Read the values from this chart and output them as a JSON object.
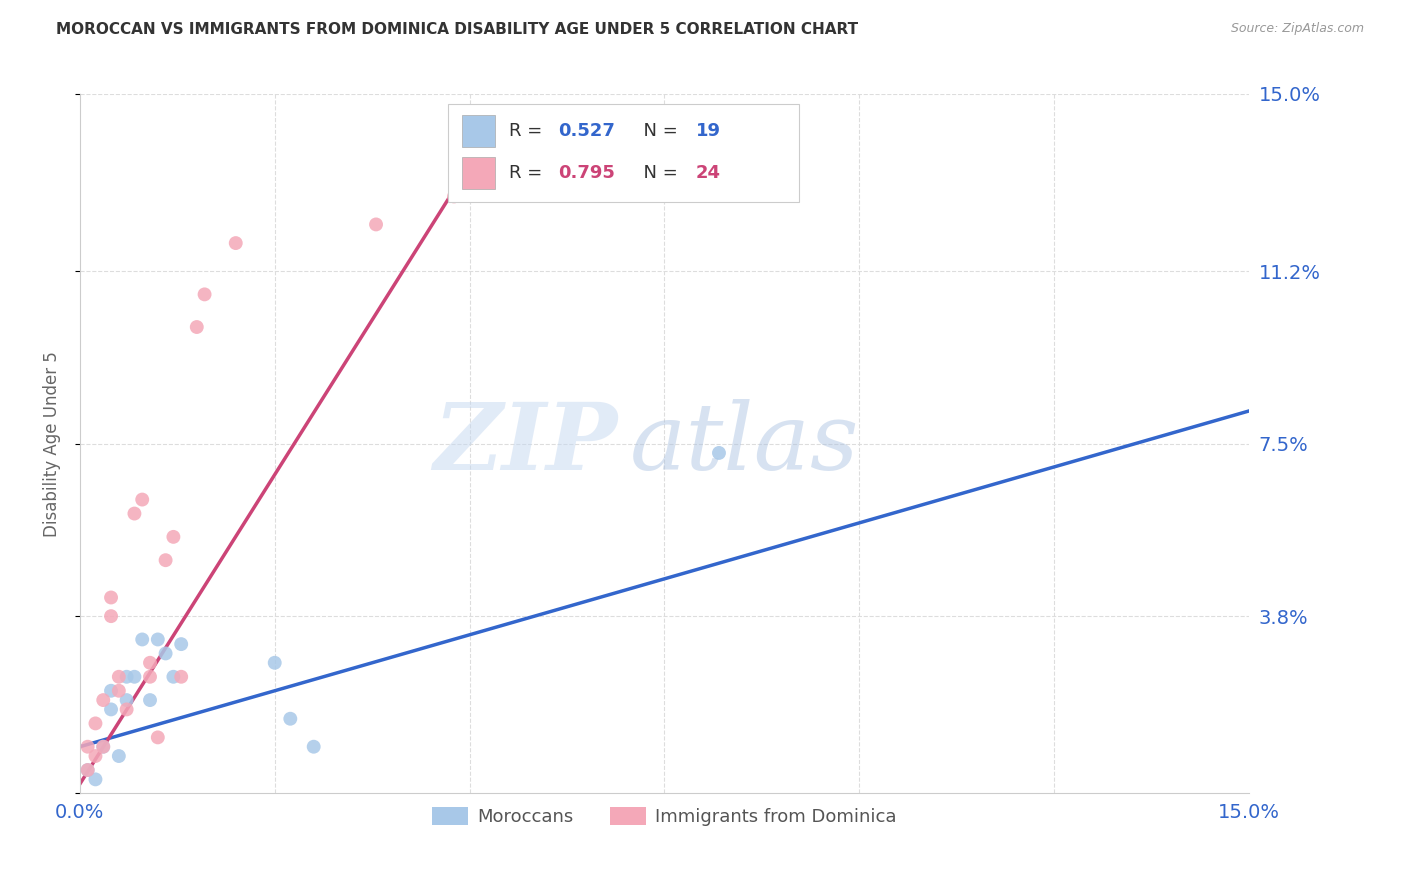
{
  "title": "MOROCCAN VS IMMIGRANTS FROM DOMINICA DISABILITY AGE UNDER 5 CORRELATION CHART",
  "source": "Source: ZipAtlas.com",
  "ylabel": "Disability Age Under 5",
  "ytick_values": [
    0.0,
    0.038,
    0.075,
    0.112,
    0.15
  ],
  "ytick_labels": [
    "",
    "3.8%",
    "7.5%",
    "11.2%",
    "15.0%"
  ],
  "xlim": [
    0.0,
    0.15
  ],
  "ylim": [
    0.0,
    0.15
  ],
  "blue_color": "#a8c8e8",
  "blue_line_color": "#3366cc",
  "pink_color": "#f4a8b8",
  "pink_line_color": "#cc4477",
  "watermark_zip": "ZIP",
  "watermark_atlas": "atlas",
  "blue_dots_x": [
    0.001,
    0.002,
    0.003,
    0.004,
    0.004,
    0.005,
    0.006,
    0.006,
    0.007,
    0.008,
    0.009,
    0.01,
    0.011,
    0.012,
    0.013,
    0.025,
    0.027,
    0.03,
    0.082
  ],
  "blue_dots_y": [
    0.005,
    0.003,
    0.01,
    0.018,
    0.022,
    0.008,
    0.02,
    0.025,
    0.025,
    0.033,
    0.02,
    0.033,
    0.03,
    0.025,
    0.032,
    0.028,
    0.016,
    0.01,
    0.073
  ],
  "pink_dots_x": [
    0.001,
    0.001,
    0.002,
    0.002,
    0.003,
    0.003,
    0.004,
    0.004,
    0.005,
    0.005,
    0.006,
    0.007,
    0.008,
    0.009,
    0.009,
    0.01,
    0.011,
    0.012,
    0.013,
    0.015,
    0.016,
    0.02,
    0.038,
    0.048
  ],
  "pink_dots_y": [
    0.005,
    0.01,
    0.008,
    0.015,
    0.01,
    0.02,
    0.038,
    0.042,
    0.022,
    0.025,
    0.018,
    0.06,
    0.063,
    0.028,
    0.025,
    0.012,
    0.05,
    0.055,
    0.025,
    0.1,
    0.107,
    0.118,
    0.122,
    0.128
  ],
  "blue_line_x": [
    0.0,
    0.15
  ],
  "blue_line_y": [
    0.01,
    0.082
  ],
  "pink_line_x": [
    0.0,
    0.052
  ],
  "pink_line_y": [
    0.002,
    0.14
  ],
  "background_color": "#ffffff",
  "grid_color": "#dddddd",
  "title_color": "#333333",
  "axis_label_color": "#3366cc",
  "marker_size": 100,
  "axis_label_color_right": "#3366cc"
}
